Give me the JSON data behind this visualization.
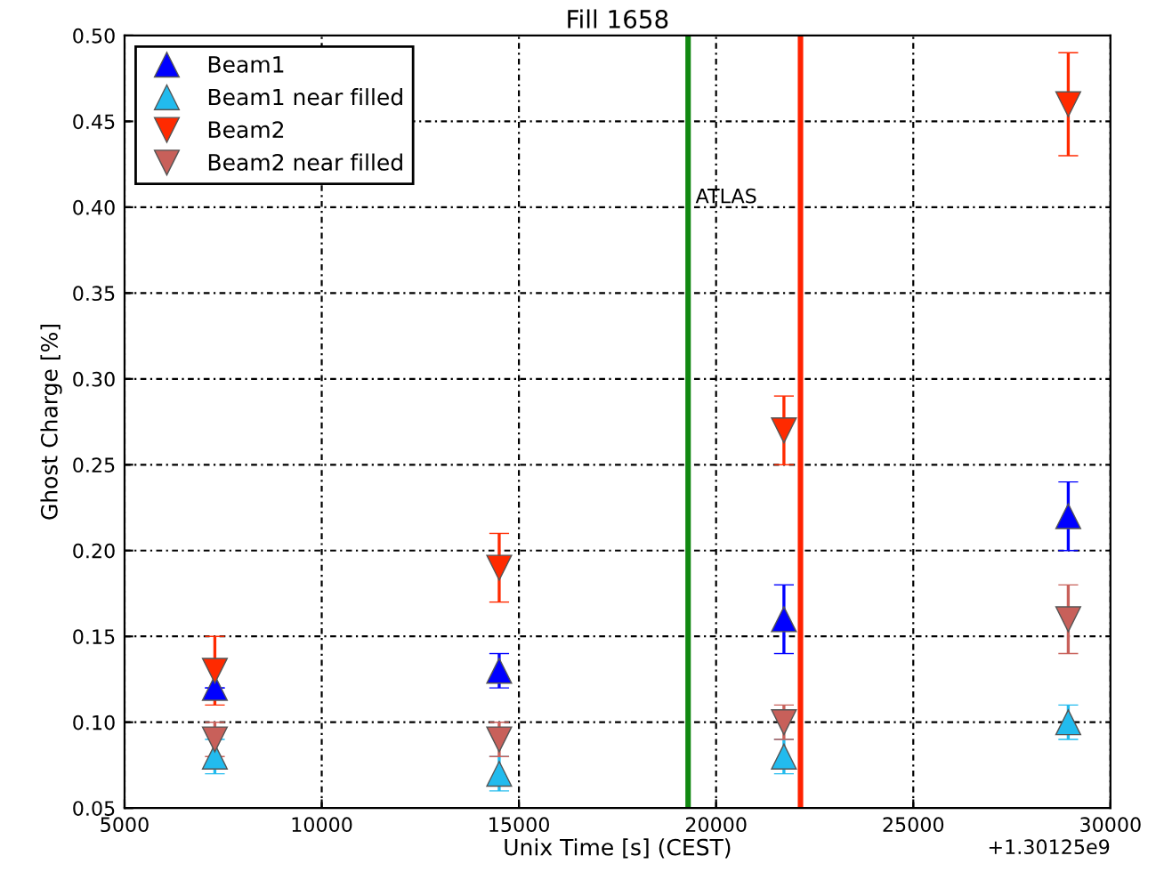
{
  "chart_data": {
    "type": "scatter",
    "title": "Fill 1658",
    "xlabel": "Unix Time [s] (CEST)",
    "ylabel": "Ghost Charge [%]",
    "x": [
      7290,
      14500,
      21720,
      28930
    ],
    "series": [
      {
        "name": "Beam1",
        "color": "#0000ff",
        "marker": "triangle",
        "values": [
          0.12,
          0.13,
          0.16,
          0.22
        ],
        "errors": [
          null,
          0.01,
          0.02,
          0.02
        ]
      },
      {
        "name": "Beam1 near filled",
        "color": "#22bbee",
        "marker": "triangle",
        "values": [
          0.08,
          0.07,
          0.08,
          0.1
        ],
        "errors": [
          0.01,
          0.01,
          0.01,
          0.01
        ]
      },
      {
        "name": "Beam2",
        "color": "#ff2a00",
        "marker": "triangle_down",
        "values": [
          0.13,
          0.19,
          0.27,
          0.46
        ],
        "errors": [
          0.02,
          0.02,
          0.02,
          0.03
        ]
      },
      {
        "name": "Beam2 near filled",
        "color": "#c8605a",
        "marker": "triangle_down",
        "values": [
          0.09,
          0.09,
          0.1,
          0.16
        ],
        "errors": [
          0.01,
          0.01,
          0.01,
          0.02
        ]
      }
    ],
    "ref_lines": [
      {
        "axis": "x",
        "value": 19290,
        "label": "ATLAS",
        "color": "#118811"
      },
      {
        "axis": "x",
        "value": 22140,
        "color": "#ff2200"
      }
    ],
    "xlim": [
      5000,
      30000
    ],
    "xticks": [
      5000,
      10000,
      15000,
      20000,
      25000,
      30000
    ],
    "ylim": [
      0.05,
      0.5
    ],
    "yticks": [
      {
        "value": 0.05,
        "label": "0.05"
      },
      {
        "value": 0.1,
        "label": "0.10"
      },
      {
        "value": 0.15,
        "label": "0.15"
      },
      {
        "value": 0.2,
        "label": "0.20"
      },
      {
        "value": 0.25,
        "label": "0.25"
      },
      {
        "value": 0.3,
        "label": "0.30"
      },
      {
        "value": 0.35,
        "label": "0.35"
      },
      {
        "value": 0.4,
        "label": "0.40"
      },
      {
        "value": 0.45,
        "label": "0.45"
      },
      {
        "value": 0.5,
        "label": "0.50"
      }
    ],
    "annotations": [
      "+1.30125e9"
    ],
    "grid": true,
    "legend": "top left"
  }
}
